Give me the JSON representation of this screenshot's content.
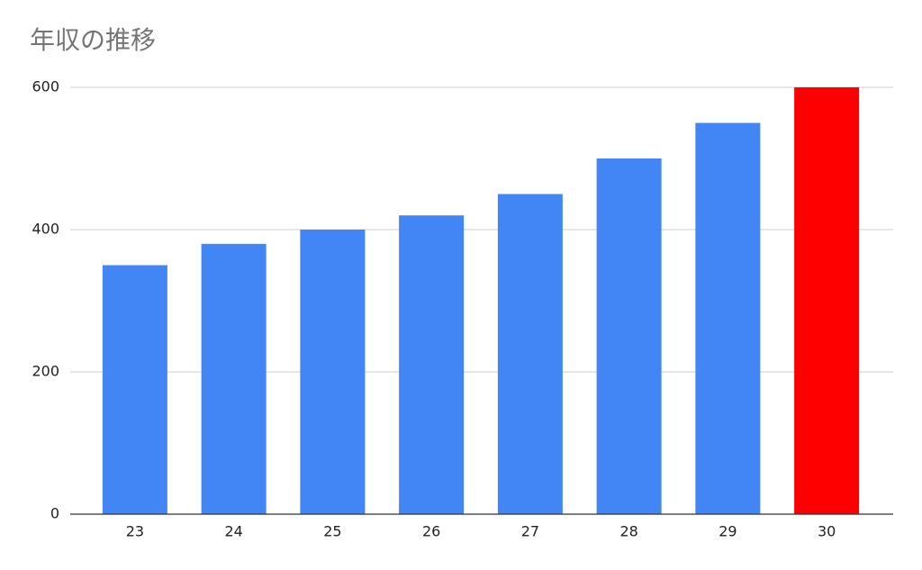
{
  "chart_data": {
    "type": "bar",
    "title": "年収の推移",
    "categories": [
      "23",
      "24",
      "25",
      "26",
      "27",
      "28",
      "29",
      "30"
    ],
    "values": [
      350,
      380,
      400,
      420,
      450,
      500,
      550,
      600
    ],
    "colors": [
      "#4285f4",
      "#4285f4",
      "#4285f4",
      "#4285f4",
      "#4285f4",
      "#4285f4",
      "#4285f4",
      "#ff0000"
    ],
    "ylim": [
      0,
      600
    ],
    "yticks": [
      0,
      200,
      400,
      600
    ],
    "grid": true
  }
}
